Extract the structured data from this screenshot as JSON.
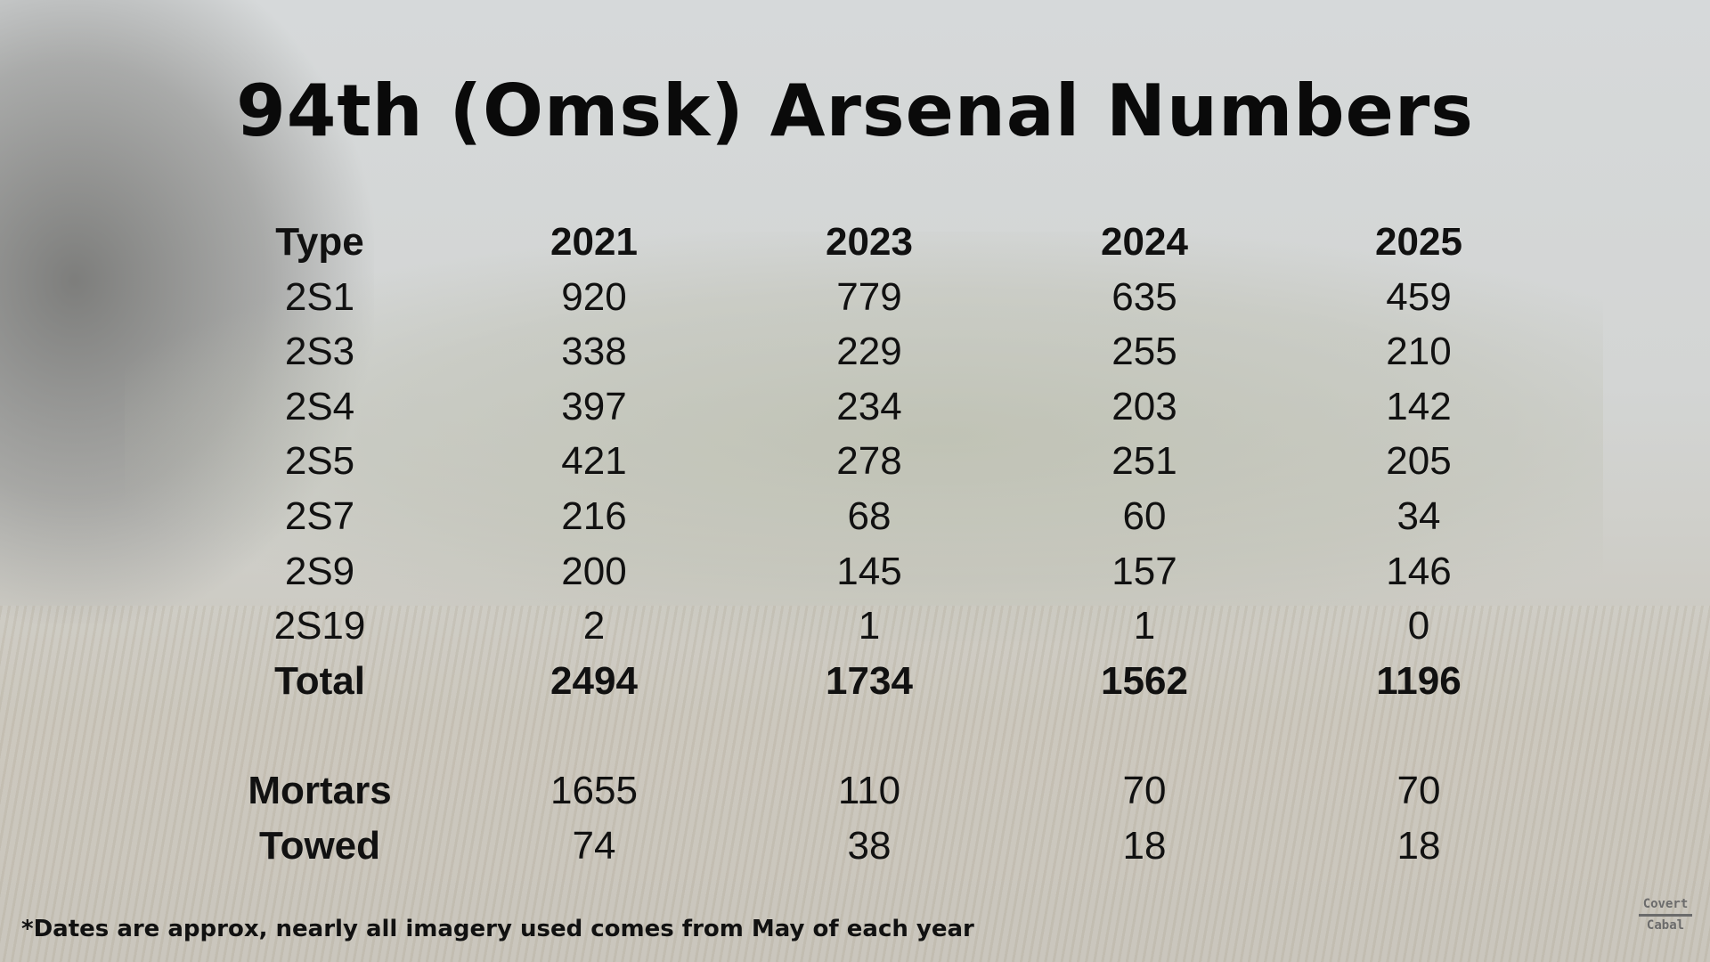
{
  "title": "94th (Omsk) Arsenal Numbers",
  "table": {
    "headers": [
      "Type",
      "2021",
      "2023",
      "2024",
      "2025"
    ],
    "rows": [
      [
        "2S1",
        "920",
        "779",
        "635",
        "459"
      ],
      [
        "2S3",
        "338",
        "229",
        "255",
        "210"
      ],
      [
        "2S4",
        "397",
        "234",
        "203",
        "142"
      ],
      [
        "2S5",
        "421",
        "278",
        "251",
        "205"
      ],
      [
        "2S7",
        "216",
        "68",
        "60",
        "34"
      ],
      [
        "2S9",
        "200",
        "145",
        "157",
        "146"
      ],
      [
        "2S19",
        "2",
        "1",
        "1",
        "0"
      ]
    ],
    "total": [
      "Total",
      "2494",
      "1734",
      "1562",
      "1196"
    ],
    "extra_rows": [
      [
        "Mortars",
        "1655",
        "110",
        "70",
        "70"
      ],
      [
        "Towed",
        "74",
        "38",
        "18",
        "18"
      ]
    ]
  },
  "footnote": "*Dates are approx, nearly all imagery used comes from May of each year",
  "watermark": {
    "line1": "Covert",
    "line2": "Cabal"
  }
}
